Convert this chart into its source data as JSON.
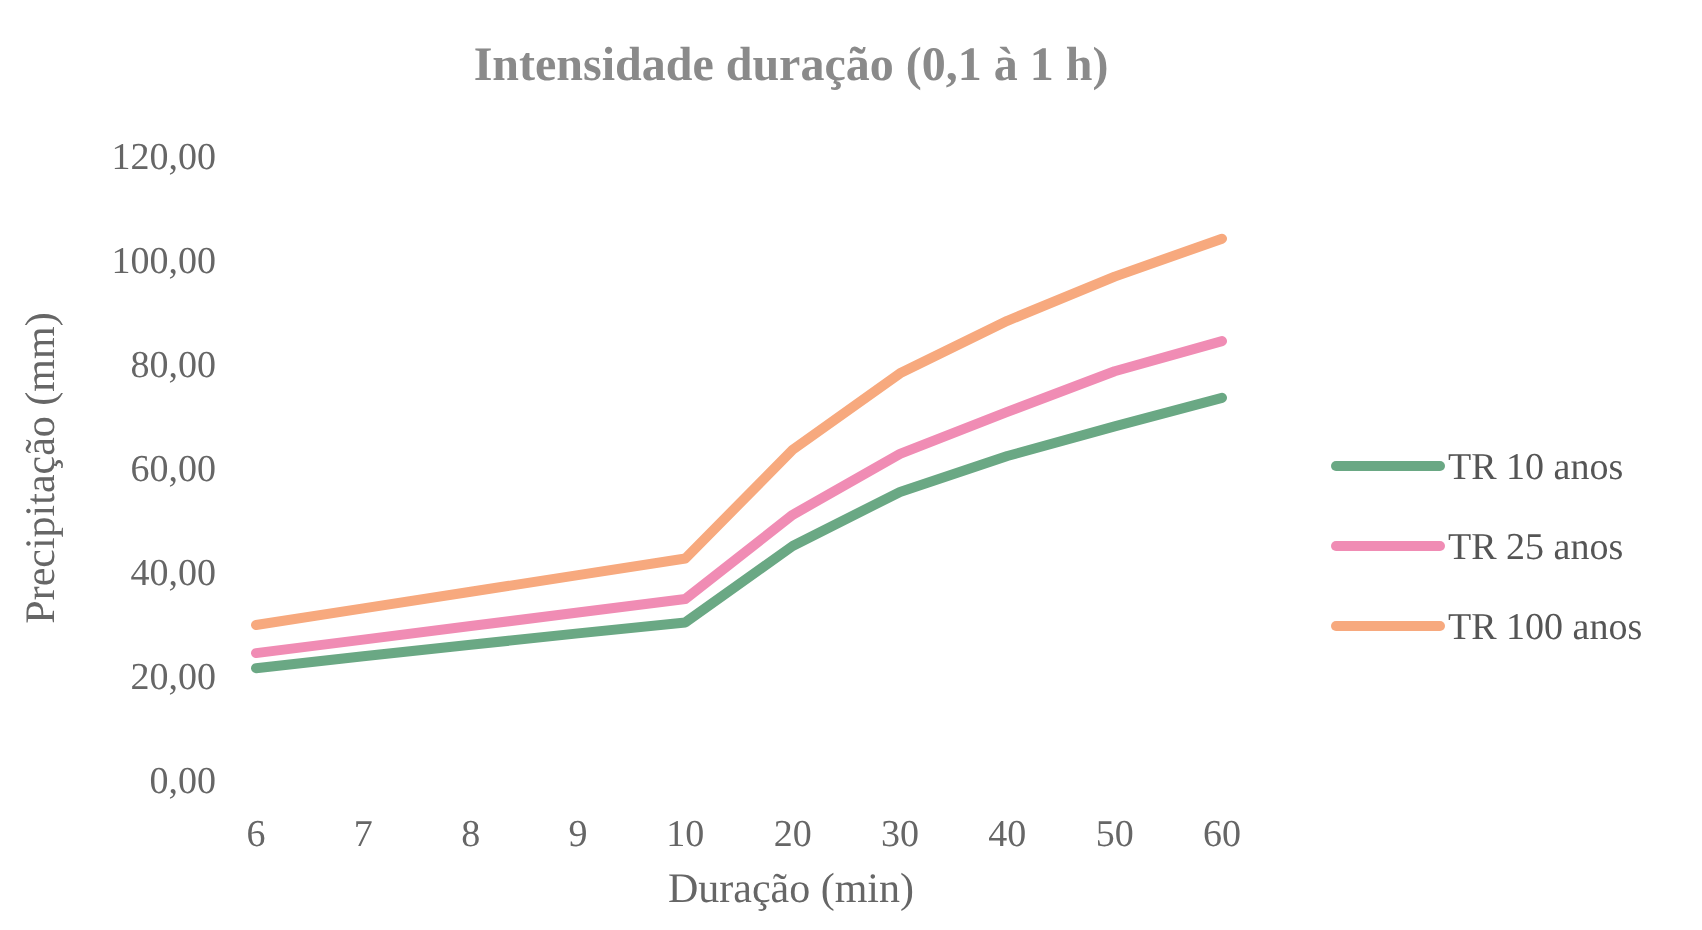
{
  "chart_data": {
    "type": "line",
    "title": "Intensidade duração (0,1 à 1 h)",
    "xlabel": "Duração (min)",
    "ylabel": "Precipitação (mm)",
    "categories": [
      "6",
      "7",
      "8",
      "9",
      "10",
      "20",
      "30",
      "40",
      "50",
      "60"
    ],
    "series": [
      {
        "name": "TR 10 anos",
        "color": "#6aa884",
        "values": [
          21.5,
          23.8,
          26,
          28.2,
          30.3,
          45,
          55.4,
          62.3,
          68,
          73.5
        ]
      },
      {
        "name": "TR 25 anos",
        "color": "#f08cb4",
        "values": [
          24.4,
          27,
          29.6,
          32.2,
          34.8,
          51,
          62.7,
          70.8,
          78.6,
          84.4
        ]
      },
      {
        "name": "TR 100 anos",
        "color": "#f7a97e",
        "values": [
          29.8,
          33,
          36.2,
          39.4,
          42.6,
          63.5,
          78.2,
          88.3,
          96.8,
          104.1
        ]
      }
    ],
    "ylim": [
      0,
      120
    ],
    "yticks": [
      {
        "value": 0,
        "label": "0,00"
      },
      {
        "value": 20,
        "label": "20,00"
      },
      {
        "value": 40,
        "label": "40,00"
      },
      {
        "value": 60,
        "label": "60,00"
      },
      {
        "value": 80,
        "label": "80,00"
      },
      {
        "value": 100,
        "label": "100,00"
      },
      {
        "value": 120,
        "label": "120,00"
      }
    ],
    "grid": false,
    "legend": "right",
    "line_style": "solid"
  }
}
